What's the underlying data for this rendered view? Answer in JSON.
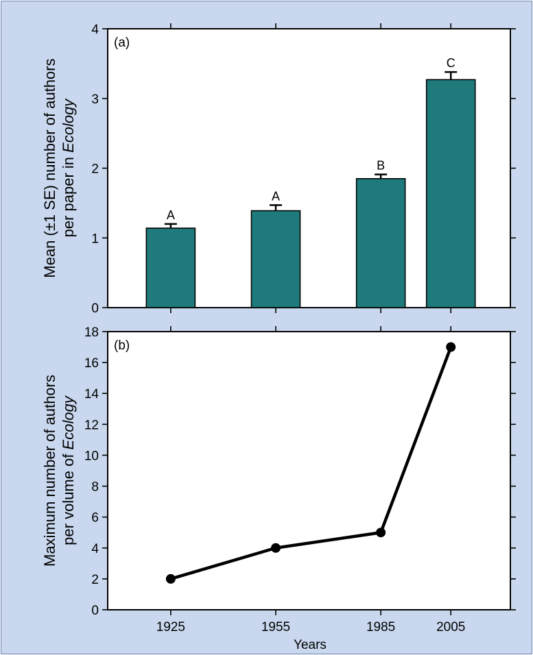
{
  "colors": {
    "background": "#c9d8ee",
    "plot_area": "#ffffff",
    "bar_fill": "#1f7b7b",
    "ink": "#000000"
  },
  "xlabel": "Years",
  "chart_data": [
    {
      "type": "bar",
      "panel_label": "(a)",
      "categories": [
        1925,
        1955,
        1985,
        2005
      ],
      "values": [
        1.14,
        1.39,
        1.85,
        3.27
      ],
      "se": [
        0.06,
        0.08,
        0.06,
        0.11
      ],
      "significance_letters": [
        "A",
        "A",
        "B",
        "C"
      ],
      "ylabel_lines": [
        "Mean (±1 SE) number of authors",
        "per paper in "
      ],
      "ylabel_italic": "Ecology",
      "ylim": [
        0,
        4
      ],
      "yticks": [
        0,
        1,
        2,
        3,
        4
      ],
      "xlim": [
        1907,
        2022
      ],
      "grid": false
    },
    {
      "type": "line",
      "panel_label": "(b)",
      "x": [
        1925,
        1955,
        1985,
        2005
      ],
      "y": [
        2,
        4,
        5,
        17
      ],
      "ylabel_lines": [
        "Maximum number of authors",
        "per volume of "
      ],
      "ylabel_italic": "Ecology",
      "ylim": [
        0,
        18
      ],
      "yticks": [
        0,
        2,
        4,
        6,
        8,
        10,
        12,
        14,
        16,
        18
      ],
      "xticks": [
        1925,
        1955,
        1985,
        2005
      ],
      "xlim": [
        1907,
        2022
      ],
      "xlabel": "Years",
      "grid": false
    }
  ]
}
